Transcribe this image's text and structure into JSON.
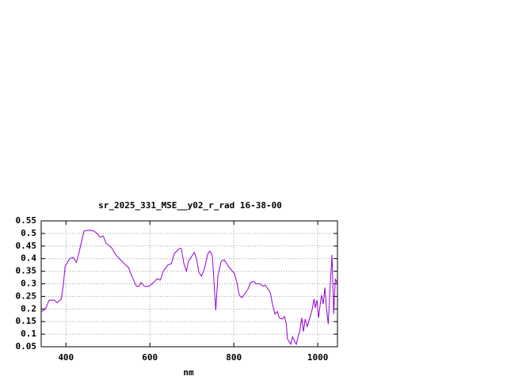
{
  "chart_data": {
    "type": "line",
    "title": "sr_2025_331_MSE__y02_r_rad 16-38-00",
    "x_label": "nm",
    "x": [
      342,
      351,
      360,
      372,
      379,
      389,
      394,
      398,
      409,
      417,
      425,
      432,
      443,
      455,
      466,
      474,
      481,
      489,
      496,
      508,
      519,
      530,
      542,
      549,
      557,
      568,
      574,
      579,
      587,
      598,
      609,
      617,
      625,
      632,
      643,
      651,
      658,
      670,
      675,
      681,
      687,
      692,
      700,
      706,
      711,
      717,
      723,
      730,
      738,
      743,
      749,
      753,
      757,
      762,
      770,
      777,
      787,
      794,
      802,
      808,
      813,
      819,
      826,
      834,
      840,
      847,
      853,
      862,
      870,
      875,
      881,
      887,
      892,
      898,
      904,
      908,
      915,
      921,
      925,
      928,
      936,
      940,
      945,
      949,
      953,
      957,
      962,
      966,
      970,
      975,
      981,
      987,
      991,
      994,
      998,
      1002,
      1006,
      1009,
      1013,
      1017,
      1021,
      1025,
      1030,
      1034,
      1038,
      1042,
      1047
    ],
    "series": [
      {
        "color": "#9400d3",
        "values": [
          0.19,
          0.2,
          0.235,
          0.235,
          0.225,
          0.24,
          0.3,
          0.37,
          0.4,
          0.405,
          0.385,
          0.43,
          0.51,
          0.513,
          0.51,
          0.5,
          0.485,
          0.49,
          0.46,
          0.445,
          0.415,
          0.395,
          0.375,
          0.365,
          0.33,
          0.29,
          0.29,
          0.305,
          0.29,
          0.29,
          0.305,
          0.32,
          0.315,
          0.35,
          0.375,
          0.38,
          0.42,
          0.44,
          0.44,
          0.38,
          0.35,
          0.39,
          0.41,
          0.425,
          0.4,
          0.345,
          0.33,
          0.36,
          0.42,
          0.43,
          0.41,
          0.3,
          0.195,
          0.33,
          0.39,
          0.395,
          0.37,
          0.355,
          0.34,
          0.3,
          0.255,
          0.245,
          0.26,
          0.28,
          0.305,
          0.31,
          0.3,
          0.3,
          0.29,
          0.295,
          0.28,
          0.265,
          0.22,
          0.18,
          0.19,
          0.165,
          0.16,
          0.17,
          0.14,
          0.08,
          0.06,
          0.09,
          0.07,
          0.06,
          0.09,
          0.11,
          0.165,
          0.11,
          0.16,
          0.13,
          0.165,
          0.2,
          0.24,
          0.205,
          0.235,
          0.165,
          0.22,
          0.255,
          0.22,
          0.285,
          0.2,
          0.14,
          0.3,
          0.415,
          0.18,
          0.32,
          0.3
        ]
      }
    ],
    "xlim": [
      341,
      1047
    ],
    "xticks": [
      400,
      600,
      800,
      1000
    ],
    "ylim": [
      0.05,
      0.55
    ],
    "yticks": [
      0.05,
      0.1,
      0.15,
      0.2,
      0.25,
      0.3,
      0.35,
      0.4,
      0.45,
      0.5,
      0.55
    ],
    "grid": true
  }
}
